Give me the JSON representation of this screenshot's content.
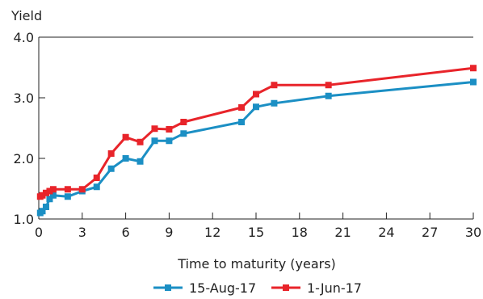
{
  "chart_data": {
    "type": "line",
    "ylabel": "Yield",
    "xlabel": "Time to maturity (years)",
    "xlim": [
      0,
      30
    ],
    "ylim": [
      1.0,
      4.0
    ],
    "x_ticks": [
      "0",
      "3",
      "6",
      "9",
      "12",
      "15",
      "18",
      "21",
      "24",
      "27",
      "30"
    ],
    "y_ticks": [
      "1.0",
      "2.0",
      "3.0",
      "4.0"
    ],
    "grid": false,
    "legend_position": "bottom",
    "series": [
      {
        "name": "15-Aug-17",
        "color": "#1b8fc4",
        "marker": "square",
        "points": [
          [
            0.1,
            1.1
          ],
          [
            0.25,
            1.13
          ],
          [
            0.5,
            1.2
          ],
          [
            0.75,
            1.33
          ],
          [
            1,
            1.39
          ],
          [
            2,
            1.37
          ],
          [
            3,
            1.46
          ],
          [
            4,
            1.53
          ],
          [
            5,
            1.83
          ],
          [
            6,
            2.0
          ],
          [
            7,
            1.95
          ],
          [
            8,
            2.29
          ],
          [
            9,
            2.29
          ],
          [
            10,
            2.41
          ],
          [
            14,
            2.6
          ],
          [
            15,
            2.85
          ],
          [
            16.25,
            2.91
          ],
          [
            20,
            3.03
          ],
          [
            30,
            3.26
          ]
        ]
      },
      {
        "name": "1-Jun-17",
        "color": "#e8242a",
        "marker": "square",
        "points": [
          [
            0.1,
            1.37
          ],
          [
            0.25,
            1.39
          ],
          [
            0.5,
            1.43
          ],
          [
            0.75,
            1.46
          ],
          [
            1,
            1.49
          ],
          [
            2,
            1.49
          ],
          [
            3,
            1.49
          ],
          [
            4,
            1.68
          ],
          [
            5,
            2.08
          ],
          [
            6,
            2.35
          ],
          [
            7,
            2.27
          ],
          [
            8,
            2.49
          ],
          [
            9,
            2.48
          ],
          [
            10,
            2.6
          ],
          [
            14,
            2.84
          ],
          [
            15,
            3.06
          ],
          [
            16.25,
            3.21
          ],
          [
            20,
            3.21
          ],
          [
            30,
            3.49
          ]
        ]
      }
    ]
  }
}
